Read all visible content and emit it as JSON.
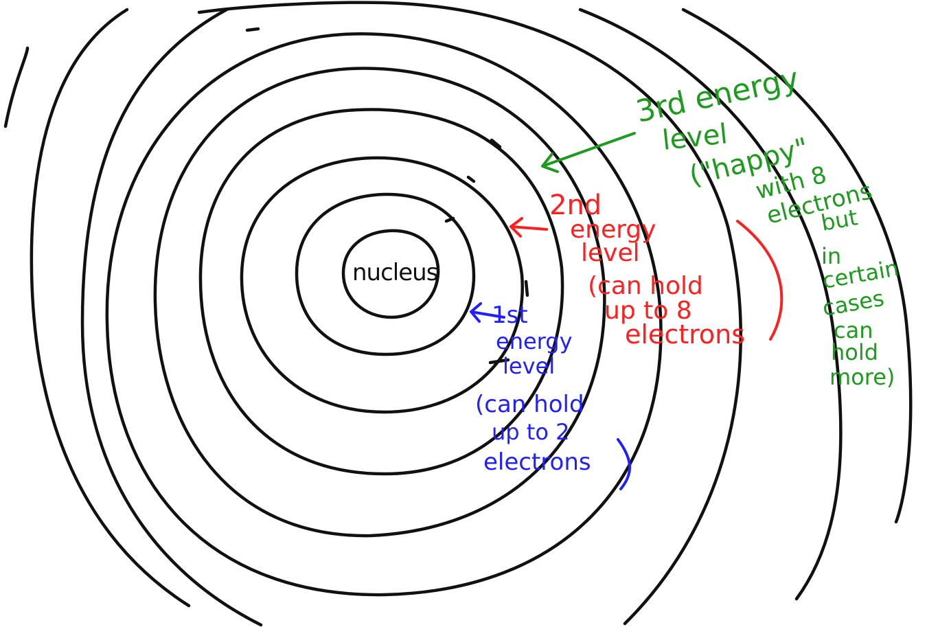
{
  "colors": {
    "rings": "#111111",
    "level1": "#1f1fff",
    "level2": "#ff1f1f",
    "level3": "#1e9a1e",
    "background": "#ffffff"
  },
  "nucleus": {
    "label": "nucleus"
  },
  "annotations": {
    "level1": {
      "lines": [
        "1st",
        "energy",
        "level",
        "(can hold",
        "up to 2",
        "electrons"
      ]
    },
    "level2": {
      "lines": [
        "2nd",
        "energy",
        "level",
        "(can hold",
        "up to 8",
        "electrons"
      ]
    },
    "level3": {
      "lines": [
        "3rd energy",
        "level",
        "(\"happy\"",
        "with 8",
        "electrons",
        "but",
        "in",
        "certain",
        "cases",
        "can",
        "hold",
        "more)"
      ]
    }
  }
}
